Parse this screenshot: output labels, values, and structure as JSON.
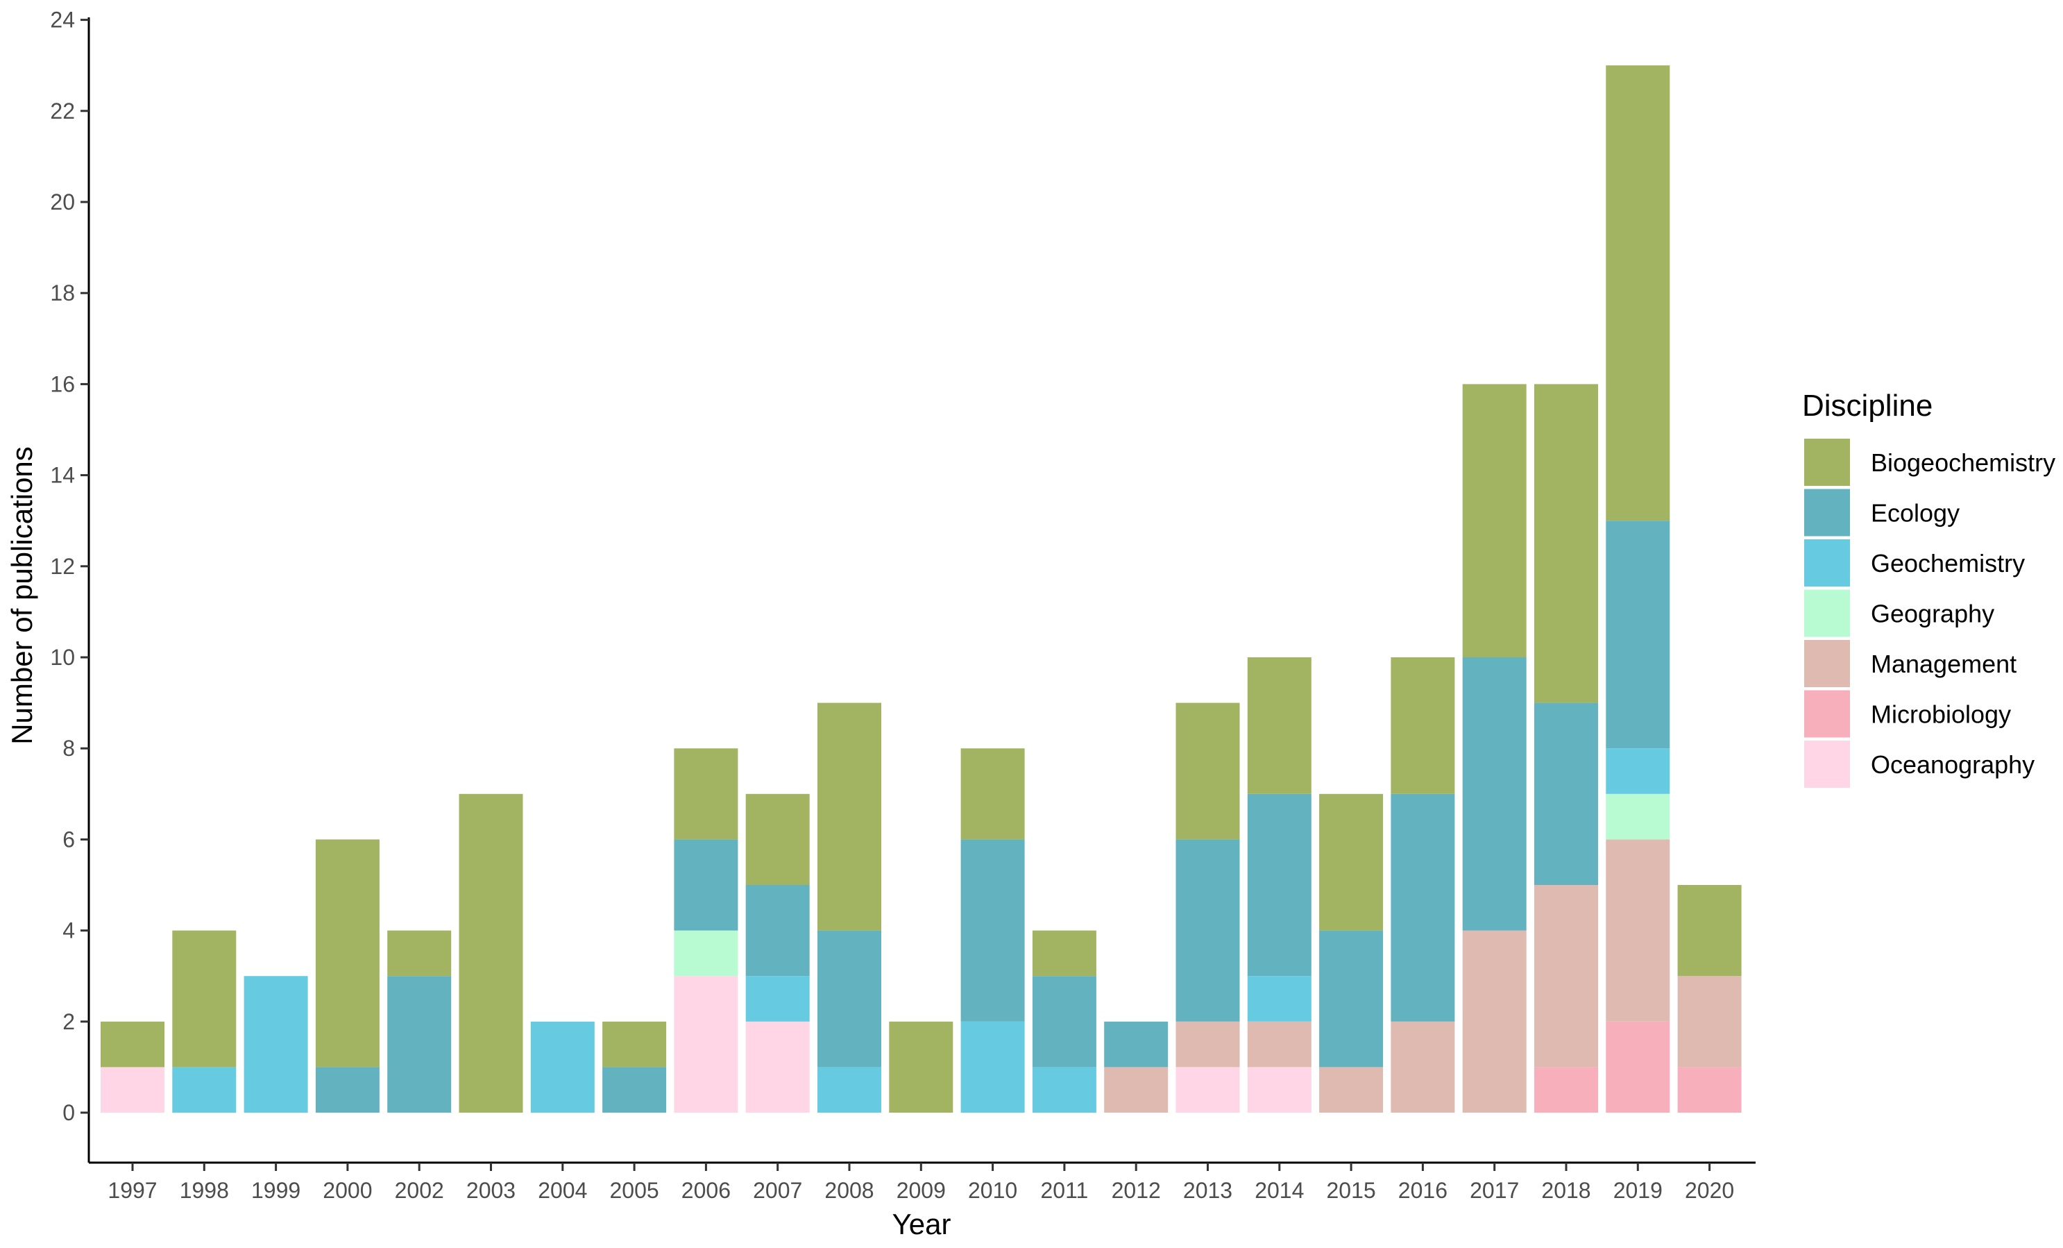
{
  "chart_data": {
    "type": "bar",
    "stacked": true,
    "title": "",
    "xlabel": "Year",
    "ylabel": "Number of publications",
    "ylim": [
      -1,
      24
    ],
    "yticks": [
      0,
      2,
      4,
      6,
      8,
      10,
      12,
      14,
      16,
      18,
      20,
      22,
      24
    ],
    "grid": false,
    "legend_title": "Discipline",
    "legend_position": "right",
    "categories": [
      "1997",
      "1998",
      "1999",
      "2000",
      "2002",
      "2003",
      "2004",
      "2005",
      "2006",
      "2007",
      "2008",
      "2009",
      "2010",
      "2011",
      "2012",
      "2013",
      "2014",
      "2015",
      "2016",
      "2017",
      "2018",
      "2019",
      "2020"
    ],
    "series": [
      {
        "name": "Oceanography",
        "color": "#FFD6E5",
        "values": [
          1,
          0,
          0,
          0,
          0,
          0,
          0,
          0,
          3,
          2,
          0,
          0,
          0,
          0,
          0,
          1,
          1,
          0,
          0,
          0,
          0,
          0,
          0
        ]
      },
      {
        "name": "Microbiology",
        "color": "#F7AFBB",
        "values": [
          0,
          0,
          0,
          0,
          0,
          0,
          0,
          0,
          0,
          0,
          0,
          0,
          0,
          0,
          0,
          0,
          0,
          0,
          0,
          0,
          1,
          2,
          1
        ]
      },
      {
        "name": "Management",
        "color": "#DFBAB1",
        "values": [
          0,
          0,
          0,
          0,
          0,
          0,
          0,
          0,
          0,
          0,
          0,
          0,
          0,
          0,
          1,
          1,
          1,
          1,
          2,
          4,
          4,
          4,
          2
        ]
      },
      {
        "name": "Geography",
        "color": "#B8FAD2",
        "values": [
          0,
          0,
          0,
          0,
          0,
          0,
          0,
          0,
          1,
          0,
          0,
          0,
          0,
          0,
          0,
          0,
          0,
          0,
          0,
          0,
          0,
          1,
          0
        ]
      },
      {
        "name": "Geochemistry",
        "color": "#66CBE1",
        "values": [
          0,
          1,
          3,
          0,
          0,
          0,
          2,
          0,
          0,
          1,
          1,
          0,
          2,
          1,
          0,
          0,
          1,
          0,
          0,
          0,
          0,
          1,
          0
        ]
      },
      {
        "name": "Ecology",
        "color": "#63B2C0",
        "values": [
          0,
          0,
          0,
          1,
          3,
          0,
          0,
          1,
          2,
          2,
          3,
          0,
          4,
          2,
          1,
          4,
          4,
          3,
          5,
          6,
          4,
          5,
          0
        ]
      },
      {
        "name": "Biogeochemistry",
        "color": "#A2B461",
        "values": [
          1,
          3,
          0,
          5,
          1,
          7,
          0,
          1,
          2,
          2,
          5,
          2,
          2,
          1,
          0,
          3,
          3,
          3,
          3,
          6,
          7,
          10,
          2
        ]
      }
    ],
    "legend_order": [
      "Biogeochemistry",
      "Ecology",
      "Geochemistry",
      "Geography",
      "Management",
      "Microbiology",
      "Oceanography"
    ]
  }
}
